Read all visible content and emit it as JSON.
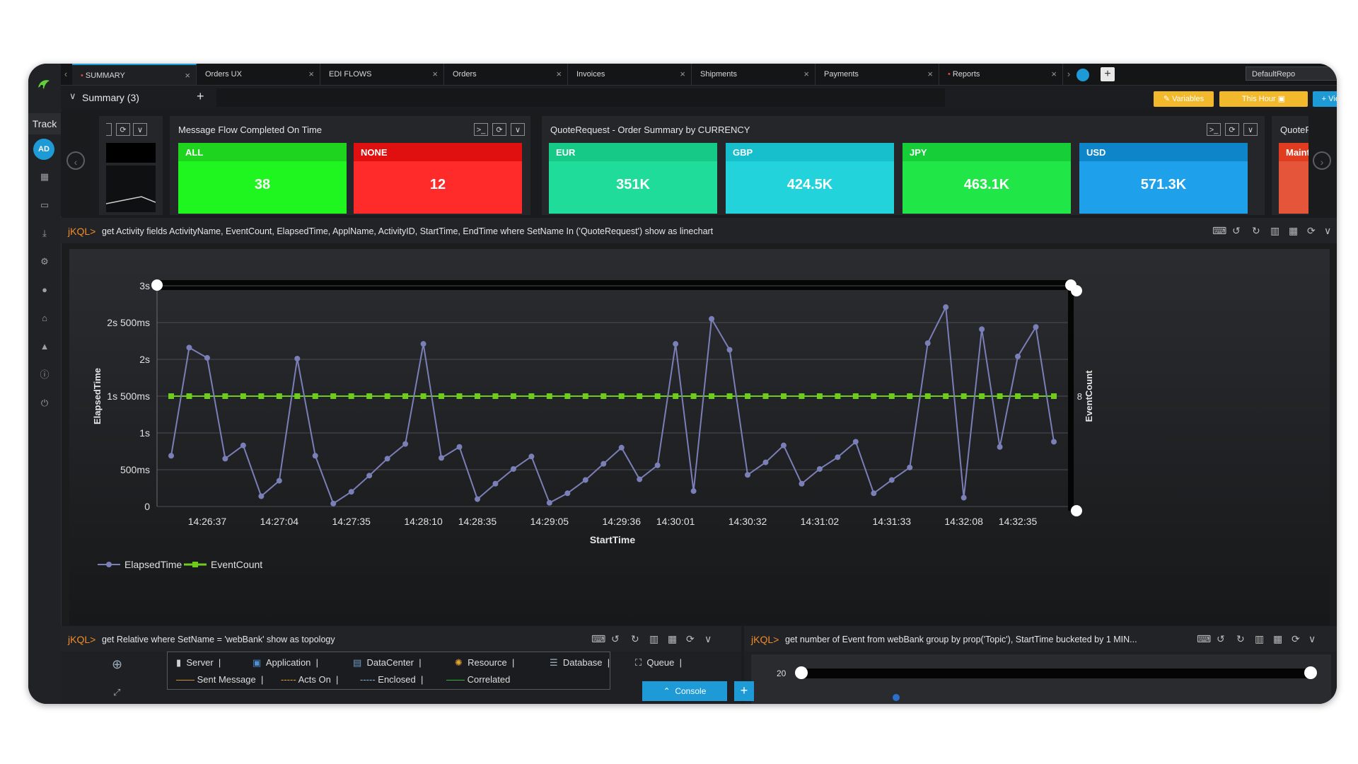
{
  "tabs": [
    {
      "label": "SUMMARY",
      "active": true,
      "marked": true
    },
    {
      "label": "Orders UX",
      "active": false
    },
    {
      "label": "EDI FLOWS",
      "active": false
    },
    {
      "label": "Orders",
      "active": false
    },
    {
      "label": "Invoices",
      "active": false
    },
    {
      "label": "Shipments",
      "active": false
    },
    {
      "label": "Payments",
      "active": false
    },
    {
      "label": "Reports",
      "active": false,
      "marked": true
    }
  ],
  "repo": "DefaultRepo",
  "sidebar": {
    "track_label": "Track",
    "avatar": "AD",
    "icons": [
      "grid-icon",
      "monitor-icon",
      "download-icon",
      "gear-icon",
      "user-icon",
      "home-icon",
      "thumbs-up-icon",
      "info-icon",
      "power-icon"
    ]
  },
  "summary": {
    "title": "Summary  (3)",
    "variables_label": "Variables",
    "this_hour_label": "This Hour",
    "viewlet_label": "Viewlet"
  },
  "flow_panel": {
    "title": "Message Flow Completed On Time",
    "tiles": [
      {
        "label": "ALL",
        "value": "38",
        "head": "#1ed41e",
        "body": "#1ff51f"
      },
      {
        "label": "NONE",
        "value": "12",
        "head": "#e01010",
        "body": "#ff2a2a"
      }
    ]
  },
  "currency_panel": {
    "title": "QuoteRequest - Order Summary by CURRENCY",
    "tiles": [
      {
        "label": "EUR",
        "value": "351K",
        "head": "#16c987",
        "body": "#1fdc9b"
      },
      {
        "label": "GBP",
        "value": "424.5K",
        "head": "#16bfcb",
        "body": "#22d3dc"
      },
      {
        "label": "JPY",
        "value": "463.1K",
        "head": "#16cf38",
        "body": "#20e648"
      },
      {
        "label": "USD",
        "value": "571.3K",
        "head": "#0d85c8",
        "body": "#1ea0ea"
      }
    ]
  },
  "partial_panel": {
    "title": "QuoteF",
    "tile_label": "Maint"
  },
  "main_query": {
    "prompt": "jKQL>",
    "text": "get Activity fields ActivityName, EventCount, ElapsedTime, ApplName, ActivityID, StartTime, EndTime where SetName In ('QuoteRequest') show as linechart"
  },
  "chart_data": {
    "type": "line",
    "xlabel": "StartTime",
    "ylabel": "ElapsedTime",
    "y2label": "EventCount",
    "y_ticks": [
      "0",
      "500ms",
      "1s",
      "1s 500ms",
      "2s",
      "2s 500ms",
      "3s"
    ],
    "y_tick_values": [
      0,
      500,
      1000,
      1500,
      2000,
      2500,
      3000
    ],
    "y2_ticks": [
      "8"
    ],
    "ylim": [
      0,
      3000
    ],
    "x_ticks": [
      "14:26:37",
      "14:27:04",
      "14:27:35",
      "14:28:10",
      "14:28:35",
      "14:29:05",
      "14:29:36",
      "14:30:01",
      "14:30:32",
      "14:31:02",
      "14:31:33",
      "14:32:08",
      "14:32:35"
    ],
    "x_tick_index": [
      2,
      6,
      10,
      14,
      17,
      21,
      25,
      28,
      32,
      36,
      40,
      44,
      47
    ],
    "series": [
      {
        "name": "ElapsedTime",
        "color": "#7b7fb8",
        "values": [
          690,
          2160,
          2020,
          650,
          830,
          140,
          350,
          2010,
          690,
          40,
          200,
          420,
          650,
          850,
          2210,
          660,
          810,
          100,
          310,
          510,
          680,
          50,
          180,
          360,
          580,
          800,
          370,
          560,
          2210,
          210,
          2550,
          2130,
          430,
          600,
          830,
          310,
          510,
          670,
          880,
          180,
          360,
          530,
          2220,
          2710,
          120,
          2410,
          810,
          2040,
          2440,
          880
        ]
      },
      {
        "name": "EventCount",
        "color": "#6dcc1e",
        "values_constant": 8,
        "points": 50
      }
    ],
    "legend": "bottom-left"
  },
  "topology_panel": {
    "prompt": "jKQL>",
    "text": "get Relative where SetName = 'webBank' show as topology",
    "legend_nodes": [
      "Server",
      "Application",
      "DataCenter",
      "Resource",
      "Database",
      "Queue"
    ],
    "legend_links": [
      "Sent Message",
      "Acts On",
      "Enclosed",
      "Correlated"
    ]
  },
  "events_panel": {
    "prompt": "jKQL>",
    "text": "get number of Event from webBank group by prop('Topic'), StartTime bucketed by 1 MIN...",
    "y_partial": "20"
  },
  "console": {
    "label": "Console"
  }
}
